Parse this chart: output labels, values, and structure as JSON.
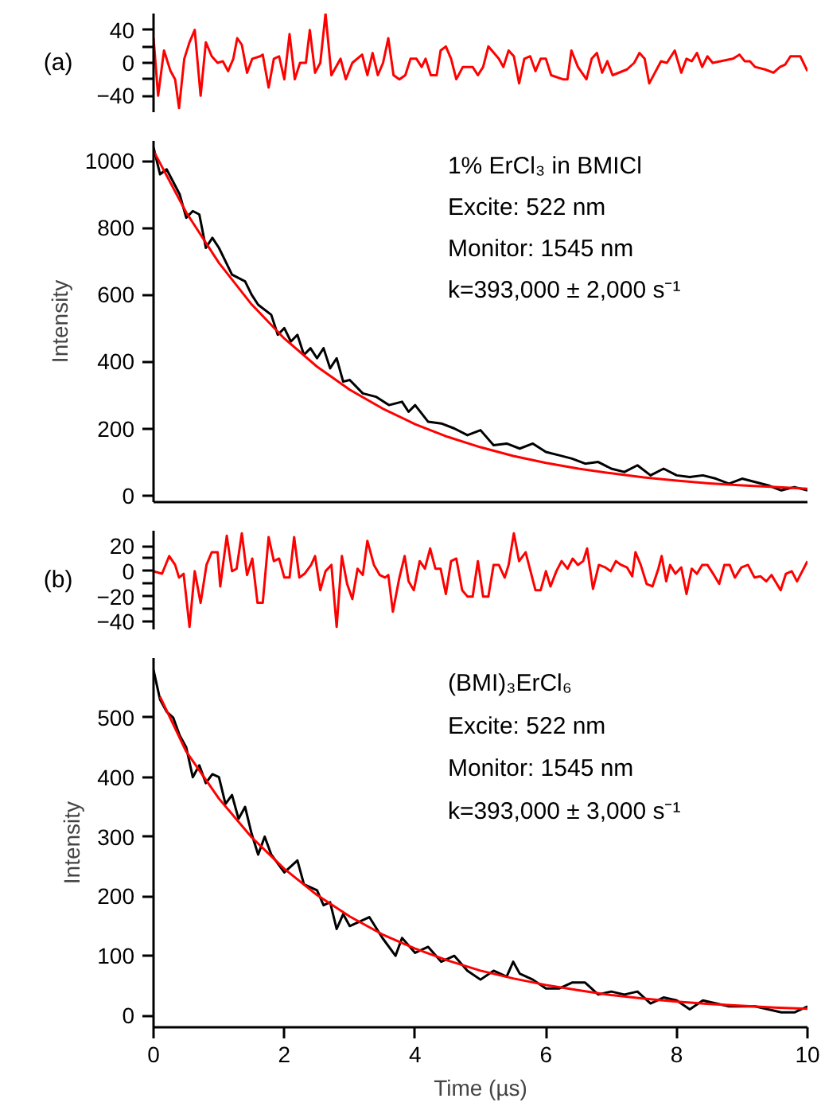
{
  "chart_data": [
    {
      "type": "line",
      "annotations": [
        "(a)"
      ],
      "xlim": [
        0,
        10
      ],
      "ylim": [
        -60,
        60
      ],
      "yticks": [
        -40,
        {
          "value": -20,
          "label": null
        },
        0,
        {
          "value": 20,
          "label": null
        },
        40
      ],
      "tick_labels": "y",
      "grid": false,
      "series": [
        {
          "color": "#ff0000",
          "x": [
            0,
            0.07,
            0.16,
            0.26,
            0.33,
            0.39,
            0.47,
            0.55,
            0.63,
            0.72,
            0.8,
            0.89,
            0.98,
            1.06,
            1.14,
            1.22,
            1.28,
            1.35,
            1.43,
            1.51,
            1.63,
            1.67,
            1.76,
            1.84,
            1.92,
            2.0,
            2.08,
            2.16,
            2.24,
            2.33,
            2.39,
            2.47,
            2.55,
            2.63,
            2.72,
            2.86,
            2.94,
            3.04,
            3.19,
            3.27,
            3.35,
            3.43,
            3.51,
            3.59,
            3.67,
            3.76,
            3.85,
            3.93,
            4.02,
            4.1,
            4.16,
            4.24,
            4.33,
            4.39,
            4.47,
            4.55,
            4.63,
            4.73,
            4.8,
            4.88,
            4.96,
            5.04,
            5.12,
            5.28,
            5.35,
            5.43,
            5.51,
            5.59,
            5.67,
            5.76,
            5.84,
            5.92,
            6.0,
            6.08,
            6.26,
            6.33,
            6.39,
            6.49,
            6.62,
            6.7,
            6.78,
            6.86,
            6.94,
            7.02,
            7.24,
            7.35,
            7.43,
            7.51,
            7.58,
            7.76,
            7.85,
            7.97,
            8.07,
            8.15,
            8.23,
            8.31,
            8.39,
            8.47,
            8.55,
            8.86,
            8.96,
            9.04,
            9.12,
            9.2,
            9.35,
            9.48,
            9.58,
            9.66,
            9.74,
            9.89,
            10
          ],
          "values": [
            30,
            -40,
            15,
            -10,
            -20,
            -55,
            5,
            25,
            40,
            -40,
            25,
            8,
            0,
            2,
            -10,
            5,
            30,
            22,
            -12,
            5,
            8,
            10,
            -30,
            5,
            8,
            -20,
            35,
            -20,
            0,
            0,
            40,
            -12,
            0,
            60,
            -15,
            5,
            -20,
            0,
            10,
            -15,
            12,
            -15,
            0,
            30,
            -15,
            -20,
            -15,
            5,
            5,
            -5,
            5,
            -15,
            -15,
            15,
            20,
            5,
            -20,
            -5,
            -5,
            -5,
            -15,
            -5,
            20,
            5,
            -5,
            15,
            8,
            -25,
            5,
            8,
            -10,
            5,
            5,
            -15,
            -20,
            -20,
            15,
            -5,
            -20,
            5,
            12,
            -12,
            2,
            -15,
            -8,
            0,
            12,
            5,
            -25,
            2,
            0,
            15,
            -12,
            5,
            2,
            12,
            -5,
            8,
            0,
            5,
            10,
            2,
            2,
            -5,
            -8,
            -12,
            -5,
            -2,
            8,
            8,
            -10
          ]
        }
      ]
    },
    {
      "type": "line",
      "ylabel": "Intensity",
      "annotations": [
        "1% ErCl₃ in BMICl",
        "Excite: 522 nm",
        "Monitor: 1545 nm",
        "k=393,000 ± 2,000 s⁻¹"
      ],
      "xlim": [
        0,
        10
      ],
      "ylim": [
        -20,
        1060
      ],
      "yticks": [
        0,
        200,
        400,
        600,
        800,
        1000
      ],
      "tick_labels": "y",
      "grid": false,
      "series": [
        {
          "color": "#000000",
          "x": [
            0,
            0.1,
            0.2,
            0.4,
            0.5,
            0.6,
            0.7,
            0.8,
            0.9,
            1.0,
            1.2,
            1.3,
            1.4,
            1.5,
            1.6,
            1.8,
            1.9,
            2.0,
            2.1,
            2.2,
            2.3,
            2.4,
            2.5,
            2.6,
            2.7,
            2.8,
            2.9,
            3.0,
            3.2,
            3.4,
            3.6,
            3.8,
            3.9,
            4.0,
            4.2,
            4.4,
            4.6,
            4.8,
            5.0,
            5.2,
            5.4,
            5.6,
            5.8,
            6.0,
            6.2,
            6.4,
            6.6,
            6.8,
            7.0,
            7.2,
            7.4,
            7.6,
            7.8,
            8.0,
            8.2,
            8.4,
            8.6,
            8.8,
            9.0,
            9.2,
            9.4,
            9.6,
            9.8,
            10
          ],
          "values": [
            1040,
            960,
            975,
            900,
            830,
            850,
            840,
            740,
            770,
            740,
            660,
            650,
            640,
            600,
            570,
            540,
            480,
            500,
            460,
            480,
            420,
            440,
            410,
            440,
            380,
            410,
            340,
            345,
            305,
            295,
            270,
            280,
            250,
            270,
            220,
            215,
            200,
            180,
            195,
            150,
            155,
            140,
            155,
            130,
            120,
            110,
            95,
            100,
            80,
            70,
            90,
            60,
            80,
            60,
            55,
            60,
            50,
            35,
            50,
            40,
            30,
            15,
            25,
            15
          ]
        },
        {
          "color": "#ff0000",
          "x": [
            0,
            0.5,
            1,
            1.5,
            2,
            2.5,
            3,
            3.5,
            4,
            4.5,
            5,
            5.5,
            6,
            6.5,
            7,
            7.5,
            8,
            8.5,
            9,
            9.5,
            10
          ],
          "values": [
            1030,
            846,
            695,
            571,
            469,
            385,
            316,
            260,
            213,
            175,
            144,
            118,
            97,
            80,
            66,
            54,
            44,
            36,
            30,
            25,
            20
          ]
        }
      ]
    },
    {
      "type": "line",
      "annotations": [
        "(b)"
      ],
      "xlim": [
        0,
        10
      ],
      "ylim": [
        -46,
        32
      ],
      "yticks": [
        -40,
        {
          "value": -30,
          "label": null
        },
        -20,
        {
          "value": -10,
          "label": null
        },
        0,
        {
          "value": 10,
          "label": null
        },
        20
      ],
      "tick_labels": "y",
      "grid": false,
      "series": [
        {
          "color": "#ff0000",
          "x": [
            0,
            0.13,
            0.24,
            0.33,
            0.39,
            0.46,
            0.55,
            0.63,
            0.72,
            0.81,
            0.89,
            0.98,
            1.02,
            1.12,
            1.2,
            1.27,
            1.35,
            1.43,
            1.51,
            1.59,
            1.67,
            1.76,
            1.84,
            1.92,
            2.0,
            2.08,
            2.15,
            2.23,
            2.31,
            2.41,
            2.47,
            2.55,
            2.63,
            2.72,
            2.8,
            2.88,
            2.96,
            3.04,
            3.12,
            3.2,
            3.27,
            3.37,
            3.46,
            3.54,
            3.59,
            3.66,
            3.76,
            3.84,
            3.9,
            3.98,
            4.07,
            4.15,
            4.23,
            4.31,
            4.39,
            4.47,
            4.55,
            4.63,
            4.72,
            4.8,
            4.88,
            4.96,
            5.04,
            5.12,
            5.2,
            5.28,
            5.37,
            5.43,
            5.51,
            5.59,
            5.69,
            5.84,
            5.92,
            6.0,
            6.07,
            6.16,
            6.24,
            6.33,
            6.41,
            6.49,
            6.57,
            6.63,
            6.72,
            6.81,
            6.91,
            6.99,
            7.07,
            7.15,
            7.24,
            7.32,
            7.37,
            7.45,
            7.54,
            7.63,
            7.72,
            7.77,
            7.84,
            7.9,
            7.98,
            8.07,
            8.15,
            8.23,
            8.31,
            8.39,
            8.47,
            8.57,
            8.65,
            8.73,
            8.81,
            8.89,
            8.99,
            9.09,
            9.19,
            9.28,
            9.37,
            9.45,
            9.59,
            9.67,
            9.76,
            9.84,
            10
          ],
          "values": [
            0,
            -2,
            12,
            5,
            -5,
            -2,
            -44,
            0,
            -25,
            5,
            15,
            15,
            -12,
            28,
            0,
            2,
            30,
            -3,
            10,
            -25,
            -25,
            27,
            8,
            10,
            -5,
            -5,
            27,
            -5,
            -2,
            5,
            12,
            -15,
            0,
            5,
            -44,
            12,
            -10,
            -22,
            2,
            -3,
            24,
            5,
            -3,
            -5,
            -3,
            -32,
            -5,
            12,
            -8,
            -15,
            8,
            2,
            18,
            2,
            2,
            -18,
            8,
            10,
            -15,
            -20,
            -20,
            8,
            -20,
            -20,
            5,
            5,
            -5,
            5,
            30,
            8,
            15,
            -15,
            -15,
            0,
            -12,
            0,
            8,
            2,
            10,
            5,
            8,
            18,
            -14,
            5,
            3,
            0,
            8,
            5,
            3,
            -4,
            15,
            5,
            -10,
            -12,
            2,
            12,
            -8,
            5,
            -2,
            3,
            -18,
            2,
            -2,
            5,
            5,
            -3,
            -10,
            5,
            5,
            -5,
            3,
            5,
            -5,
            -4,
            -8,
            -3,
            -15,
            -2,
            0,
            -8,
            8
          ]
        }
      ]
    },
    {
      "type": "line",
      "xlabel": "Time (µs)",
      "ylabel": "Intensity",
      "annotations": [
        "(BMI)₃ErCl₆",
        "Excite: 522 nm",
        "Monitor: 1545 nm",
        "k=393,000 ± 3,000 s⁻¹"
      ],
      "xlim": [
        0,
        10
      ],
      "xticks": [
        0,
        2,
        4,
        6,
        8,
        10
      ],
      "ylim": [
        -20,
        600
      ],
      "yticks": [
        0,
        100,
        200,
        300,
        400,
        500
      ],
      "grid": false,
      "series": [
        {
          "color": "#000000",
          "x": [
            0,
            0.1,
            0.2,
            0.3,
            0.4,
            0.5,
            0.6,
            0.7,
            0.8,
            0.9,
            1.0,
            1.1,
            1.2,
            1.3,
            1.4,
            1.5,
            1.6,
            1.7,
            1.8,
            1.9,
            2.0,
            2.2,
            2.3,
            2.5,
            2.6,
            2.7,
            2.8,
            2.9,
            3.0,
            3.2,
            3.3,
            3.5,
            3.7,
            3.8,
            4.0,
            4.2,
            4.4,
            4.6,
            4.8,
            5.0,
            5.2,
            5.4,
            5.5,
            5.6,
            5.8,
            6.0,
            6.2,
            6.4,
            6.6,
            6.8,
            7.0,
            7.2,
            7.4,
            7.6,
            7.8,
            8.0,
            8.2,
            8.4,
            8.6,
            8.8,
            9.0,
            9.2,
            9.4,
            9.6,
            9.8,
            10
          ],
          "values": [
            580,
            530,
            510,
            500,
            470,
            450,
            400,
            420,
            390,
            405,
            400,
            355,
            370,
            330,
            350,
            305,
            270,
            300,
            270,
            255,
            240,
            260,
            220,
            210,
            185,
            190,
            145,
            170,
            150,
            160,
            165,
            130,
            100,
            130,
            105,
            115,
            90,
            100,
            75,
            60,
            75,
            65,
            90,
            70,
            60,
            45,
            45,
            55,
            55,
            35,
            40,
            35,
            40,
            20,
            30,
            25,
            10,
            25,
            20,
            15,
            15,
            15,
            10,
            5,
            5,
            15
          ]
        },
        {
          "color": "#ff0000",
          "x": [
            0.1,
            0.5,
            1,
            1.5,
            2,
            2.5,
            3,
            3.5,
            4,
            4.5,
            5,
            5.5,
            6,
            6.5,
            7,
            7.5,
            8,
            8.5,
            9,
            9.5,
            10
          ],
          "values": [
            535,
            443,
            364,
            299,
            246,
            202,
            166,
            136,
            112,
            92,
            75,
            62,
            51,
            42,
            34,
            28,
            23,
            19,
            16,
            13,
            11
          ]
        }
      ]
    }
  ]
}
